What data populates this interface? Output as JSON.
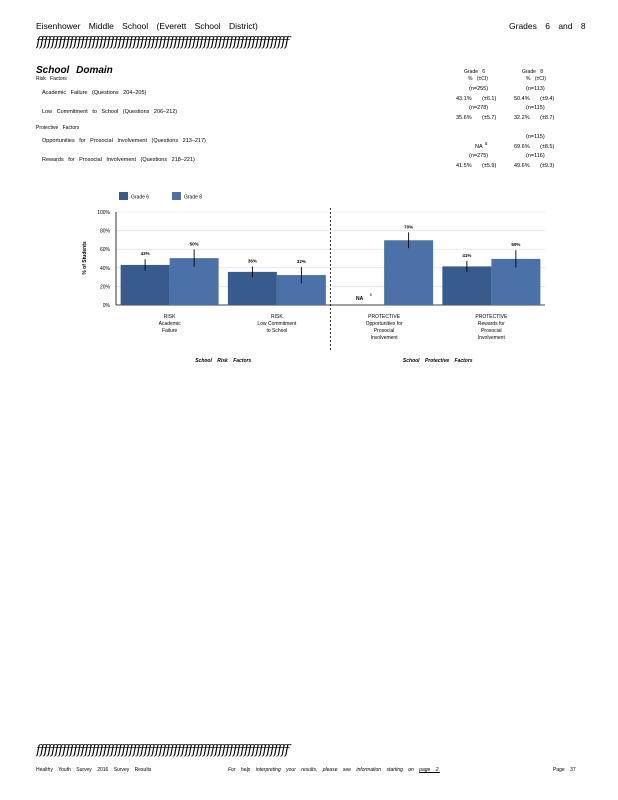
{
  "header": {
    "school": "Eisenhower Middle School (Everett School District)",
    "grades": "Grades 6 and 8"
  },
  "rule_text": "ffffffffffffffffffffffffffffffffffffffffffffffffffffffffffffffffffff",
  "domain_title": "School Domain",
  "risk_heading": "Risk Factors",
  "protective_heading": "Protective Factors",
  "column_headers": {
    "g6_label": "Grade 6",
    "g6_sub": "% (±CI)",
    "g8_label": "Grade 8",
    "g8_sub": "% (±CI)"
  },
  "factors": [
    {
      "label": "Academic Failure (Questions 204–205)",
      "g6_n": "(n=255)",
      "g6_val": "43.1%",
      "g6_ci": "(±6.1)",
      "g8_n": "(n=113)",
      "g8_val": "50.4%",
      "g8_ci": "(±9.4)"
    },
    {
      "label": "Low Commitment to School (Questions 206–212)",
      "g6_n": "(n=278)",
      "g6_val": "35.6%",
      "g6_ci": "(±5.7)",
      "g8_n": "(n=115)",
      "g8_val": "32.2%",
      "g8_ci": "(±8.7)"
    },
    {
      "label": "Opportunities for Prosocial Involvement (Questions 213–217)",
      "g6_n": "",
      "g6_val": "NA",
      "g6_ci": "",
      "g6_note": "5",
      "g8_n": "(n=115)",
      "g8_val": "69.6%",
      "g8_ci": "(±8.5)"
    },
    {
      "label": "Rewards for Prosocial Involvement (Questions 218–221)",
      "g6_n": "(n=275)",
      "g6_val": "41.5%",
      "g6_ci": "(±5.9)",
      "g8_n": "(n=116)",
      "g8_val": "49.6%",
      "g8_ci": "(±9.3)"
    }
  ],
  "chart_data": {
    "type": "bar",
    "ylabel": "% of Students",
    "ylim": [
      0,
      100
    ],
    "yticks": [
      "0%",
      "20%",
      "40%",
      "60%",
      "80%",
      "100%"
    ],
    "categories": [
      "RISK Academic Failure",
      "RISK Low Commitment to School",
      "PROTECTIVE Opportunities for Prosocial Involvement",
      "PROTECTIVE Rewards for Prosocial Involvement"
    ],
    "category_lines": [
      [
        "RISK",
        "Academic",
        "Failure"
      ],
      [
        "RISK",
        "Low Commitment",
        "to School"
      ],
      [
        "PROTECTIVE",
        "Opportunities for",
        "Prosocial",
        "Involvement"
      ],
      [
        "PROTECTIVE",
        "Rewards for",
        "Prosocial",
        "Involvement"
      ]
    ],
    "series": [
      {
        "name": "Grade 6",
        "color": "#365b8c",
        "values": [
          43.1,
          35.6,
          null,
          41.5
        ],
        "ci": [
          6.1,
          5.7,
          null,
          5.9
        ],
        "labels": [
          "43%",
          "36%",
          "NA",
          "41%"
        ]
      },
      {
        "name": "Grade 8",
        "color": "#4a72a8",
        "values": [
          50.4,
          32.2,
          69.6,
          49.6
        ],
        "ci": [
          9.4,
          8.7,
          8.5,
          9.3
        ],
        "labels": [
          "50%",
          "32%",
          "70%",
          "50%"
        ]
      }
    ],
    "na_note": "5",
    "group_labels": [
      "School Risk Factors",
      "School Protective Factors"
    ],
    "legend_position": "top-left",
    "grid": true
  },
  "footer": {
    "left": "Healthy Youth Survey 2016 Survey Results",
    "middle": "For help interpreting your results, please see information starting on",
    "link": "page 2.",
    "page": "Page 37"
  }
}
